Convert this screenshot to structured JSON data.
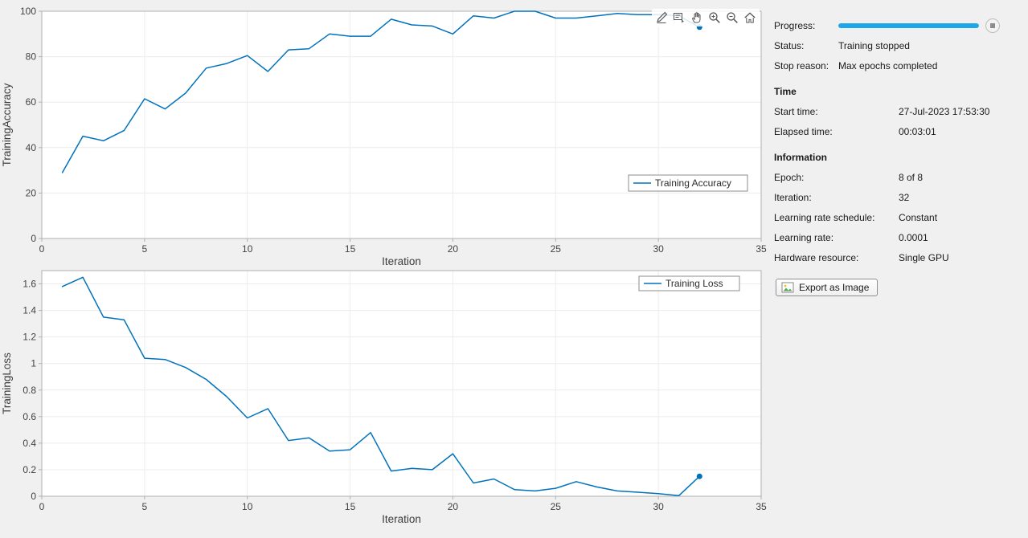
{
  "colors": {
    "background": "#f0f0f0",
    "plot_background": "#ffffff",
    "grid": "#ececec",
    "axis_box": "#b0b0b0",
    "line": "#0072bd",
    "progress_fill": "#1ea7e8"
  },
  "axes_toolbar": {
    "icons": [
      "edit-plot-icon",
      "datatips-icon",
      "pan-icon",
      "zoom-in-icon",
      "zoom-out-icon",
      "restore-view-icon"
    ]
  },
  "chart_data": [
    {
      "type": "line",
      "title": "",
      "xlabel": "Iteration",
      "ylabel": "TrainingAccuracy",
      "xlim": [
        0,
        35
      ],
      "ylim": [
        0,
        100
      ],
      "xticks": [
        0,
        5,
        10,
        15,
        20,
        25,
        30,
        35
      ],
      "yticks": [
        0,
        20,
        40,
        60,
        80,
        100
      ],
      "grid": true,
      "legend": [
        "Training Accuracy"
      ],
      "legend_position": "right-middle",
      "series": [
        {
          "name": "Training Accuracy",
          "color": "#0072bd",
          "x": [
            1,
            2,
            3,
            4,
            5,
            6,
            7,
            8,
            9,
            10,
            11,
            12,
            13,
            14,
            15,
            16,
            17,
            18,
            19,
            20,
            21,
            22,
            23,
            24,
            25,
            26,
            27,
            28,
            29,
            30,
            31,
            32
          ],
          "values": [
            29,
            45,
            43,
            47.5,
            61.5,
            57,
            64,
            75,
            77,
            80.5,
            73.5,
            83,
            83.5,
            90,
            89,
            89,
            96.5,
            94,
            93.5,
            90,
            98,
            97,
            100,
            100,
            97,
            97,
            98,
            99,
            98.5,
            98.5,
            98,
            93
          ]
        }
      ]
    },
    {
      "type": "line",
      "title": "",
      "xlabel": "Iteration",
      "ylabel": "TrainingLoss",
      "xlim": [
        0,
        35
      ],
      "ylim": [
        0,
        1.7
      ],
      "xticks": [
        0,
        5,
        10,
        15,
        20,
        25,
        30,
        35
      ],
      "yticks": [
        0,
        0.2,
        0.4,
        0.6,
        0.8,
        1,
        1.2,
        1.4,
        1.6
      ],
      "grid": true,
      "legend": [
        "Training Loss"
      ],
      "legend_position": "top-right",
      "series": [
        {
          "name": "Training Loss",
          "color": "#0072bd",
          "x": [
            1,
            2,
            3,
            4,
            5,
            6,
            7,
            8,
            9,
            10,
            11,
            12,
            13,
            14,
            15,
            16,
            17,
            18,
            19,
            20,
            21,
            22,
            23,
            24,
            25,
            26,
            27,
            28,
            29,
            30,
            31,
            32
          ],
          "values": [
            1.58,
            1.65,
            1.35,
            1.33,
            1.04,
            1.03,
            0.97,
            0.88,
            0.75,
            0.59,
            0.66,
            0.42,
            0.44,
            0.34,
            0.35,
            0.48,
            0.19,
            0.21,
            0.2,
            0.32,
            0.1,
            0.13,
            0.05,
            0.04,
            0.06,
            0.11,
            0.07,
            0.04,
            0.03,
            0.02,
            0.005,
            0.15
          ]
        }
      ]
    }
  ],
  "side_panel": {
    "progress": {
      "label": "Progress:",
      "percent": 100
    },
    "status": {
      "label": "Status:",
      "value": "Training stopped"
    },
    "stop_reason": {
      "label": "Stop reason:",
      "value": "Max epochs completed"
    },
    "time_section": {
      "header": "Time",
      "rows": [
        {
          "label": "Start time:",
          "value": "27-Jul-2023 17:53:30"
        },
        {
          "label": "Elapsed time:",
          "value": "00:03:01"
        }
      ]
    },
    "information_section": {
      "header": "Information",
      "rows": [
        {
          "label": "Epoch:",
          "value": "8 of 8"
        },
        {
          "label": "Iteration:",
          "value": "32"
        },
        {
          "label": "Learning rate schedule:",
          "value": "Constant"
        },
        {
          "label": "Learning rate:",
          "value": "0.0001"
        },
        {
          "label": "Hardware resource:",
          "value": "Single GPU"
        }
      ]
    },
    "export_button_label": "Export as Image"
  }
}
